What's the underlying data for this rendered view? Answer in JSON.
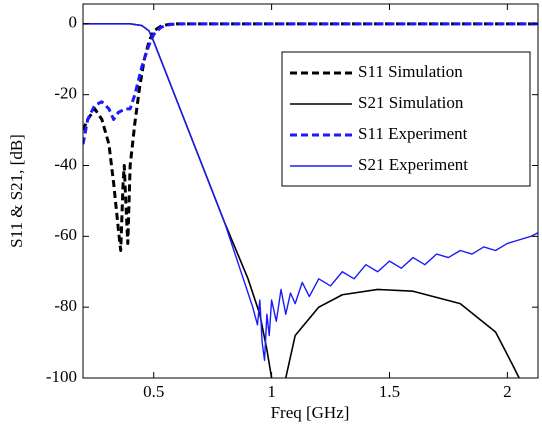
{
  "chart_data": {
    "type": "line",
    "xlabel": "Freq [GHz]",
    "ylabel": "S11 & S21, [dB]",
    "xlim": [
      0.2,
      2.13
    ],
    "ylim": [
      -100,
      5.6
    ],
    "xticks": [
      0.5,
      1,
      1.5,
      2
    ],
    "yticks": [
      -100,
      -80,
      -60,
      -40,
      -20,
      0
    ],
    "grid": false,
    "legend": "upper right",
    "series": [
      {
        "name": "S11 Simulation",
        "color": "#000000",
        "linestyle": "dashed",
        "x": [
          0.2,
          0.22,
          0.25,
          0.28,
          0.31,
          0.33,
          0.35,
          0.36,
          0.37,
          0.375,
          0.38,
          0.39,
          0.4,
          0.42,
          0.44,
          0.46,
          0.48,
          0.5,
          0.53,
          0.56,
          0.6,
          1,
          1.5,
          2.13
        ],
        "values": [
          -30,
          -27,
          -24,
          -27,
          -34,
          -45,
          -58,
          -64,
          -45,
          -40,
          -48,
          -62,
          -40,
          -28,
          -18,
          -10,
          -5,
          -2,
          -0.7,
          -0.2,
          0,
          0,
          0,
          0
        ]
      },
      {
        "name": "S21 Simulation",
        "color": "#000000",
        "linestyle": "solid",
        "x": [
          0.2,
          0.4,
          0.45,
          0.48,
          0.5,
          0.6,
          0.7,
          0.8,
          0.9,
          0.95,
          0.98,
          1.0,
          1.03,
          1.06,
          1.1,
          1.2,
          1.3,
          1.45,
          1.6,
          1.8,
          1.95,
          2.02,
          2.05
        ],
        "values": [
          0,
          0,
          -0.5,
          -2,
          -5,
          -22,
          -39,
          -56,
          -72,
          -82,
          -92,
          -100,
          null,
          -100,
          -88,
          -80,
          -76.5,
          -75,
          -75.5,
          -79,
          -87,
          -96,
          -100
        ]
      },
      {
        "name": "S11 Experiment",
        "color": "#1a1aff",
        "linestyle": "dashed",
        "x": [
          0.2,
          0.22,
          0.25,
          0.28,
          0.31,
          0.33,
          0.35,
          0.38,
          0.4,
          0.42,
          0.45,
          0.48,
          0.5,
          0.53,
          0.56,
          0.6,
          1,
          1.5,
          2.13
        ],
        "values": [
          -34,
          -27,
          -23,
          -22,
          -24,
          -27,
          -25,
          -24,
          -24,
          -20,
          -12,
          -6,
          -3,
          -1,
          -0.3,
          0,
          0,
          0,
          0
        ]
      },
      {
        "name": "S21 Experiment",
        "color": "#1a1aff",
        "linestyle": "solid",
        "x": [
          0.2,
          0.4,
          0.45,
          0.48,
          0.5,
          0.6,
          0.7,
          0.8,
          0.85,
          0.88,
          0.9,
          0.92,
          0.94,
          0.95,
          0.96,
          0.97,
          0.98,
          0.99,
          1.0,
          1.02,
          1.04,
          1.06,
          1.08,
          1.1,
          1.13,
          1.16,
          1.2,
          1.25,
          1.3,
          1.35,
          1.4,
          1.45,
          1.5,
          1.55,
          1.6,
          1.65,
          1.7,
          1.75,
          1.8,
          1.85,
          1.9,
          1.95,
          2.0,
          2.05,
          2.1,
          2.13
        ],
        "values": [
          0,
          0,
          -0.5,
          -2,
          -5,
          -22,
          -39,
          -56,
          -66,
          -72,
          -76,
          -80,
          -85,
          -78,
          -90,
          -95,
          -82,
          -88,
          -78,
          -84,
          -75,
          -82,
          -76,
          -79,
          -73,
          -77,
          -72,
          -74,
          -70,
          -72,
          -68,
          -70,
          -67,
          -69,
          -66,
          -68,
          -65,
          -66,
          -64,
          -65,
          -63,
          -64,
          -62,
          -61,
          -60,
          -59
        ]
      }
    ]
  }
}
